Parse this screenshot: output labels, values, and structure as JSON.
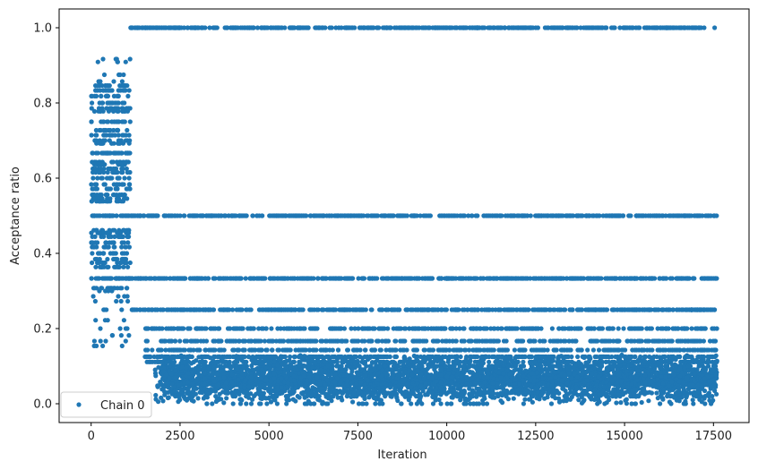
{
  "chart_data": {
    "type": "scatter",
    "title": "",
    "xlabel": "Iteration",
    "ylabel": "Acceptance ratio",
    "xlim": [
      -900,
      18500
    ],
    "ylim": [
      -0.05,
      1.05
    ],
    "x_ticks": [
      0,
      2500,
      5000,
      7500,
      10000,
      12500,
      15000,
      17500
    ],
    "x_tick_labels": [
      "0",
      "2500",
      "5000",
      "7500",
      "10000",
      "12500",
      "15000",
      "17500"
    ],
    "y_ticks": [
      0.0,
      0.2,
      0.4,
      0.6,
      0.8,
      1.0
    ],
    "y_tick_labels": [
      "0.0",
      "0.2",
      "0.4",
      "0.6",
      "0.8",
      "1.0"
    ],
    "grid": false,
    "legend": {
      "position": "lower-left",
      "entries": [
        "Chain 0"
      ]
    },
    "series": [
      {
        "name": "Chain 0",
        "color": "#1f77b4",
        "marker": "circle",
        "n_points": 17600,
        "phases": [
          {
            "x_range": [
              0,
              1100
            ],
            "y_levels": [
              0.9167,
              0.9091,
              0.875,
              0.8571,
              0.8462,
              0.8333,
              0.8182,
              0.8,
              0.7857,
              0.7778,
              0.75,
              0.7273,
              0.7143,
              0.7,
              0.6923,
              0.6667,
              0.6429,
              0.6364,
              0.625,
              0.6154,
              0.6,
              0.5833,
              0.5714,
              0.5556,
              0.5455,
              0.5385,
              0.5,
              0.4615,
              0.4545,
              0.4444,
              0.4286,
              0.4167,
              0.4,
              0.3846,
              0.375,
              0.3636,
              0.3333,
              0.3077,
              0.3,
              0.2857,
              0.2727,
              0.25,
              0.2222,
              0.2,
              0.1818,
              0.1667,
              0.1538
            ]
          },
          {
            "x_range": [
              1100,
              17600
            ],
            "y_levels": [
              1.0,
              0.5,
              0.3333,
              0.25,
              0.2,
              0.1667,
              0.1429,
              0.125,
              0.1111,
              0.1,
              0.0909,
              0.0833,
              0.0769,
              0.0714,
              0.0667,
              0.0625,
              0.0588,
              0.0556,
              0.0526,
              0.05,
              0.0435,
              0.04,
              0.0345,
              0.0303,
              0.0286,
              0.0256,
              0.02,
              0.0,
              "continuous 0.0-0.13"
            ]
          }
        ]
      }
    ]
  }
}
